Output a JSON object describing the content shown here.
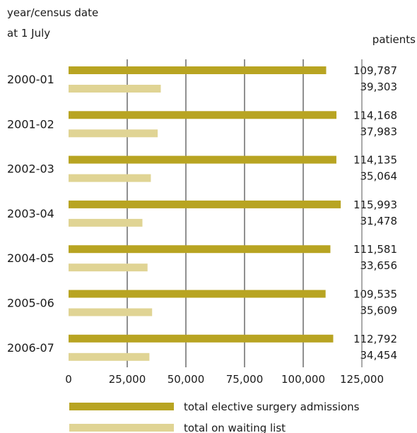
{
  "chart_data": {
    "type": "bar",
    "orientation": "horizontal",
    "y_title_line1": "year/census date",
    "y_title_line2": "at 1 July",
    "value_column_title": "patients",
    "categories": [
      "2000-01",
      "2001-02",
      "2002-03",
      "2003-04",
      "2004-05",
      "2005-06",
      "2006-07"
    ],
    "series": [
      {
        "name": "total elective surgery admissions",
        "color": "#b8a422",
        "values": [
          109787,
          114168,
          114135,
          115993,
          111581,
          109535,
          112792
        ],
        "labels": [
          "109,787",
          "114,168",
          "114,135",
          "115,993",
          "111,581",
          "109,535",
          "112,792"
        ]
      },
      {
        "name": "total on waiting list",
        "color": "#e0d494",
        "values": [
          39303,
          37983,
          35064,
          31478,
          33656,
          35609,
          34454
        ],
        "labels": [
          "39,303",
          "37,983",
          "35,064",
          "31,478",
          "33,656",
          "35,609",
          "34,454"
        ]
      }
    ],
    "xlim": [
      0,
      125000
    ],
    "xticks": [
      0,
      25000,
      50000,
      75000,
      100000,
      125000
    ],
    "xtick_labels": [
      "0",
      "25,000",
      "50,000",
      "75,000",
      "100,000",
      "125,000"
    ],
    "grid": "vertical",
    "legend": "bottom"
  }
}
